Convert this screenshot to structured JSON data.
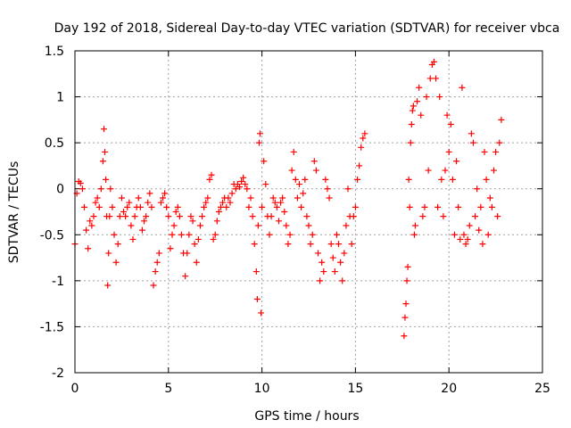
{
  "chart_data": {
    "type": "scatter",
    "title": "Day 192 of 2018, Sidereal Day-to-day VTEC variation (SDTVAR) for receiver vbca",
    "xlabel": "GPS time / hours",
    "ylabel": "SDTVAR / TECUs",
    "xlim": [
      0,
      25
    ],
    "ylim": [
      -2,
      1.5
    ],
    "xticks": [
      0,
      5,
      10,
      15,
      20,
      25
    ],
    "yticks": [
      -2,
      -1.5,
      -1,
      -0.5,
      0,
      0.5,
      1,
      1.5
    ],
    "xtick_labels": [
      "0",
      "5",
      "10",
      "15",
      "20",
      "25"
    ],
    "ytick_labels": [
      "-2",
      "-1.5",
      "-1",
      "-0.5",
      "0",
      "0.5",
      "1",
      "1.5"
    ],
    "grid": true,
    "marker": "plus",
    "marker_color": "#ff0000",
    "series": [
      {
        "name": "SDTVAR",
        "x": [
          0.0,
          0.1,
          0.2,
          0.3,
          0.4,
          0.5,
          0.6,
          0.7,
          0.8,
          0.9,
          1.0,
          1.1,
          1.2,
          1.3,
          1.4,
          1.5,
          1.55,
          1.6,
          1.65,
          1.7,
          1.75,
          1.8,
          1.85,
          1.9,
          2.0,
          2.1,
          2.2,
          2.3,
          2.4,
          2.5,
          2.6,
          2.7,
          2.8,
          2.9,
          3.0,
          3.1,
          3.2,
          3.3,
          3.4,
          3.5,
          3.6,
          3.7,
          3.8,
          3.9,
          4.0,
          4.1,
          4.2,
          4.3,
          4.4,
          4.5,
          4.6,
          4.7,
          4.8,
          4.9,
          5.0,
          5.1,
          5.2,
          5.3,
          5.4,
          5.5,
          5.6,
          5.7,
          5.8,
          5.9,
          6.0,
          6.1,
          6.2,
          6.3,
          6.4,
          6.5,
          6.6,
          6.7,
          6.8,
          6.9,
          7.0,
          7.1,
          7.2,
          7.3,
          7.4,
          7.5,
          7.6,
          7.7,
          7.8,
          7.9,
          8.0,
          8.1,
          8.2,
          8.3,
          8.4,
          8.5,
          8.6,
          8.7,
          8.8,
          8.9,
          9.0,
          9.1,
          9.2,
          9.3,
          9.4,
          9.5,
          9.6,
          9.7,
          9.75,
          9.8,
          9.85,
          9.9,
          9.95,
          10.0,
          10.1,
          10.2,
          10.3,
          10.4,
          10.5,
          10.6,
          10.7,
          10.8,
          10.9,
          11.0,
          11.1,
          11.2,
          11.3,
          11.4,
          11.5,
          11.6,
          11.7,
          11.8,
          11.9,
          12.0,
          12.1,
          12.2,
          12.3,
          12.4,
          12.5,
          12.6,
          12.7,
          12.8,
          12.9,
          13.0,
          13.1,
          13.2,
          13.3,
          13.4,
          13.5,
          13.6,
          13.7,
          13.8,
          13.9,
          14.0,
          14.1,
          14.2,
          14.3,
          14.4,
          14.5,
          14.6,
          14.7,
          14.8,
          14.9,
          15.0,
          15.1,
          15.2,
          15.3,
          15.4,
          15.5,
          17.6,
          17.65,
          17.7,
          17.75,
          17.8,
          17.85,
          17.9,
          17.95,
          18.0,
          18.05,
          18.1,
          18.15,
          18.2,
          18.3,
          18.4,
          18.5,
          18.6,
          18.7,
          18.8,
          18.9,
          19.0,
          19.1,
          19.2,
          19.3,
          19.4,
          19.5,
          19.6,
          19.7,
          19.8,
          19.9,
          20.0,
          20.1,
          20.2,
          20.3,
          20.4,
          20.5,
          20.6,
          20.7,
          20.8,
          20.9,
          21.0,
          21.1,
          21.2,
          21.3,
          21.4,
          21.5,
          21.6,
          21.7,
          21.8,
          21.9,
          22.0,
          22.1,
          22.2,
          22.3,
          22.4,
          22.5,
          22.6,
          22.7,
          22.8
        ],
        "y": [
          -0.6,
          -0.05,
          0.08,
          0.06,
          0.0,
          -0.2,
          -0.45,
          -0.65,
          -0.35,
          -0.4,
          -0.3,
          -0.15,
          -0.1,
          -0.2,
          0.0,
          0.3,
          0.65,
          0.4,
          0.1,
          -0.3,
          -1.05,
          -0.7,
          -0.3,
          0.0,
          -0.2,
          -0.5,
          -0.8,
          -0.6,
          -0.3,
          -0.1,
          -0.25,
          -0.3,
          -0.2,
          -0.15,
          -0.4,
          -0.55,
          -0.3,
          -0.2,
          -0.1,
          -0.2,
          -0.45,
          -0.35,
          -0.3,
          -0.15,
          -0.05,
          -0.2,
          -1.05,
          -0.9,
          -0.8,
          -0.7,
          -0.15,
          -0.1,
          -0.05,
          -0.2,
          -0.3,
          -0.65,
          -0.5,
          -0.4,
          -0.25,
          -0.2,
          -0.3,
          -0.5,
          -0.7,
          -0.95,
          -0.7,
          -0.5,
          -0.3,
          -0.35,
          -0.6,
          -0.8,
          -0.55,
          -0.4,
          -0.3,
          -0.2,
          -0.15,
          -0.1,
          0.1,
          0.15,
          -0.55,
          -0.5,
          -0.35,
          -0.25,
          -0.2,
          -0.15,
          -0.1,
          -0.2,
          -0.1,
          -0.15,
          -0.05,
          0.05,
          0.0,
          0.05,
          0.02,
          0.08,
          0.12,
          0.05,
          0.0,
          -0.2,
          -0.1,
          -0.3,
          -0.6,
          -0.9,
          -1.2,
          -0.4,
          0.5,
          0.6,
          -1.35,
          -0.2,
          0.3,
          0.05,
          -0.3,
          -0.5,
          -0.3,
          -0.1,
          -0.15,
          -0.2,
          -0.35,
          -0.15,
          -0.1,
          -0.25,
          -0.4,
          -0.6,
          -0.5,
          0.2,
          0.4,
          0.1,
          -0.1,
          0.05,
          -0.2,
          -0.05,
          0.1,
          -0.3,
          -0.4,
          -0.6,
          -0.5,
          0.3,
          0.2,
          -0.7,
          -1.0,
          -0.8,
          -0.9,
          0.1,
          0.0,
          -0.1,
          -0.6,
          -0.75,
          -0.9,
          -0.5,
          -0.6,
          -0.8,
          -1.0,
          -0.7,
          -0.4,
          0.0,
          -0.3,
          -0.6,
          -0.3,
          -0.2,
          0.1,
          0.25,
          0.45,
          0.55,
          0.6,
          -1.6,
          -1.4,
          -1.25,
          -1.0,
          -0.85,
          0.1,
          -0.2,
          0.5,
          0.7,
          0.85,
          0.9,
          -0.5,
          -0.4,
          0.95,
          1.1,
          0.8,
          -0.3,
          -0.2,
          1.0,
          0.2,
          1.2,
          1.35,
          1.38,
          1.2,
          -0.2,
          1.0,
          0.1,
          -0.3,
          0.2,
          0.8,
          0.4,
          0.7,
          0.1,
          -0.5,
          0.3,
          -0.2,
          -0.55,
          1.1,
          -0.5,
          -0.6,
          -0.55,
          -0.4,
          0.6,
          0.5,
          -0.3,
          0.0,
          -0.45,
          -0.2,
          -0.6,
          0.4,
          0.1,
          -0.5,
          -0.1,
          -0.2,
          0.2,
          0.4,
          -0.3,
          0.5,
          0.75
        ]
      }
    ]
  }
}
